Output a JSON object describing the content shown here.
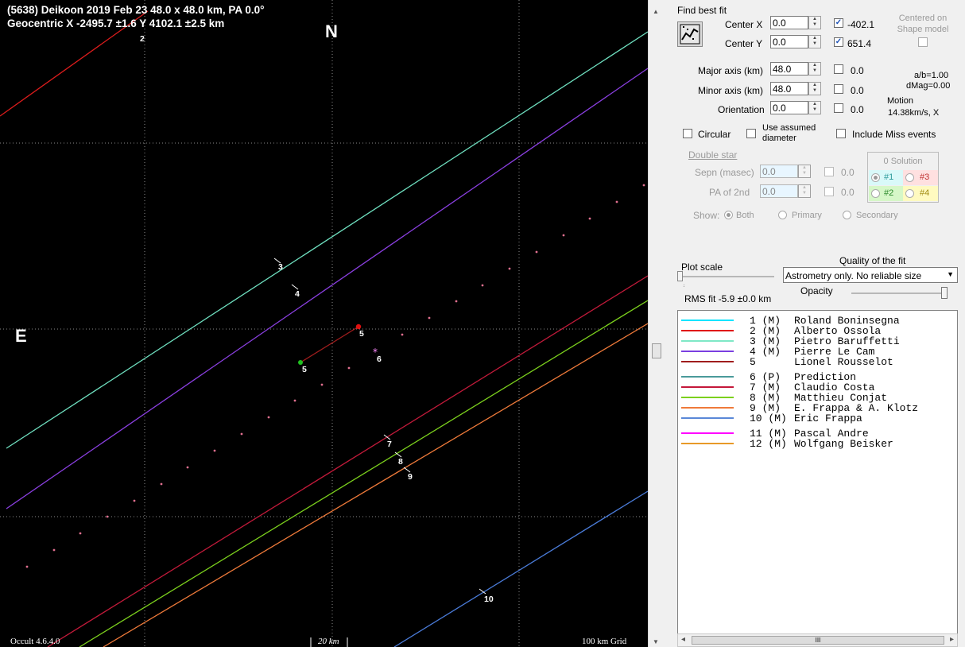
{
  "plot": {
    "header_line1": "(5638) Deikoon  2019 Feb 23  48.0 x 48.0 km, PA 0.0°",
    "header_line2": "Geocentric  X  -2495.7 ±1.6  Y 4102.1 ±2.5 km",
    "north_label": "N",
    "east_label": "E",
    "version_label": "Occult 4.6.4.0",
    "scale_label": "20 km",
    "grid_label": "100 km Grid",
    "chord_labels": [
      "2",
      "3",
      "4",
      "5",
      "5",
      "6",
      "7",
      "8",
      "9",
      "10"
    ],
    "colors": {
      "background": "#000000",
      "red": "#dd1c1c",
      "aquamarine": "#6fe0c0",
      "violet": "#8a3fe0",
      "darkred": "#c21a3a",
      "green": "#7cd11d",
      "orange": "#ef7a3a",
      "blue": "#4a7bd8",
      "prediction_dots": "#e06f8f"
    }
  },
  "panel": {
    "find_best_fit": "Find best fit",
    "center_x_label": "Center X",
    "center_x_value": "0.0",
    "center_x_fit": "-402.1",
    "center_y_label": "Center Y",
    "center_y_value": "0.0",
    "center_y_fit": "651.4",
    "centered_on_shape": "Centered on Shape model",
    "major_axis_label": "Major axis (km)",
    "major_axis_value": "48.0",
    "major_axis_fit": "0.0",
    "minor_axis_label": "Minor axis (km)",
    "minor_axis_value": "48.0",
    "minor_axis_fit": "0.0",
    "orientation_label": "Orientation",
    "orientation_value": "0.0",
    "orientation_fit": "0.0",
    "ab_ratio": "a/b=1.00",
    "dmag": "dMag=0.00",
    "motion_label": "Motion",
    "motion_value": "14.38km/s, X",
    "circular_label": "Circular",
    "use_assumed_label": "Use assumed diameter",
    "include_miss_label": "Include Miss events",
    "double_star_label": "Double star",
    "sepn_label": "Sepn (masec)",
    "sepn_value": "0.0",
    "sepn_fit": "0.0",
    "pa2_label": "PA of 2nd",
    "pa2_value": "0.0",
    "pa2_fit": "0.0",
    "solution_title": "0 Solution",
    "sol1": "#1",
    "sol2": "#2",
    "sol3": "#3",
    "sol4": "#4",
    "show_label": "Show:",
    "show_both": "Both",
    "show_primary": "Primary",
    "show_secondary": "Secondary",
    "plot_scale_label": "Plot scale",
    "quality_label": "Quality of the fit",
    "quality_value": "Astrometry only. No reliable size",
    "rms_fit": "RMS fit  -5.9 ±0.0 km",
    "opacity_label": "Opacity"
  },
  "legend": [
    {
      "id": "1 (M)",
      "name": "Roland Boninsegna",
      "color": "#00e5ff"
    },
    {
      "id": "2 (M)",
      "name": "Alberto Ossola",
      "color": "#e01818"
    },
    {
      "id": "3 (M)",
      "name": "Pietro Baruffetti",
      "color": "#7fe8c6"
    },
    {
      "id": "4 (M)",
      "name": "Pierre Le Cam",
      "color": "#7a3fe0"
    },
    {
      "id": "5",
      "name": "Lionel Rousselot",
      "color": "#a01d1d"
    },
    {
      "id": "6 (P)",
      "name": "Prediction",
      "color": "#4a9a9a"
    },
    {
      "id": "7 (M)",
      "name": "Claudio Costa",
      "color": "#c4183a"
    },
    {
      "id": "8 (M)",
      "name": "Matthieu Conjat",
      "color": "#7cd11d"
    },
    {
      "id": "9 (M)",
      "name": "E. Frappa & A. Klotz",
      "color": "#ef7a3a"
    },
    {
      "id": "10 (M)",
      "name": "Eric Frappa",
      "color": "#5a88d8"
    },
    {
      "id": "11 (M)",
      "name": "Pascal Andre",
      "color": "#ff00ff"
    },
    {
      "id": "12 (M)",
      "name": "Wolfgang Beisker",
      "color": "#e89a28"
    }
  ],
  "hscroll_thumb": "III"
}
